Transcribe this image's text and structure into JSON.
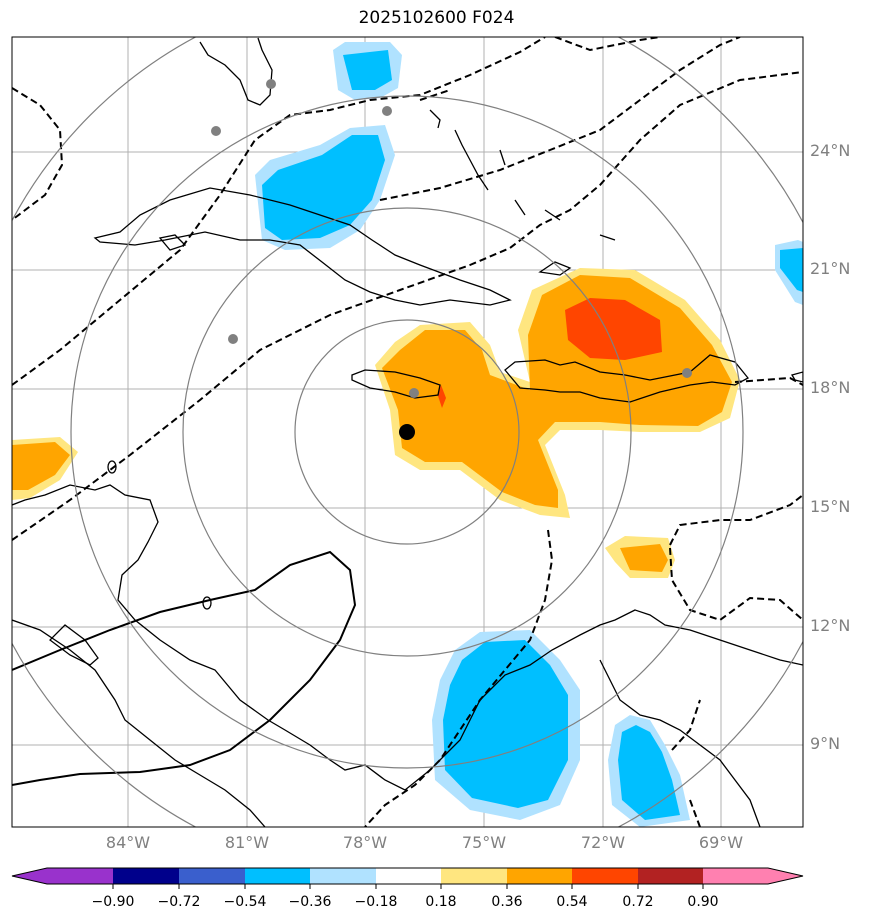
{
  "title": "2025102600 F024",
  "lat_ticks": [
    "24°N",
    "21°N",
    "18°N",
    "15°N",
    "12°N",
    "9°N"
  ],
  "lon_ticks": [
    "84°W",
    "81°W",
    "78°W",
    "75°W",
    "72°W",
    "69°W"
  ],
  "colorbar": {
    "labels": [
      "−0.90",
      "−0.72",
      "−0.54",
      "−0.36",
      "−0.18",
      "0.18",
      "0.36",
      "0.54",
      "0.72",
      "0.90"
    ],
    "colors": [
      "#9932cc",
      "#00008b",
      "#3a5fcd",
      "#00bfff",
      "#b0e2ff",
      "#ffffff",
      "#ffe680",
      "#ffa500",
      "#ff4500",
      "#b22222",
      "#ff80b0"
    ]
  },
  "fill_colors": {
    "light_orange": "#ffe680",
    "orange": "#ffa500",
    "red": "#ff4500",
    "light_blue": "#b0e2ff",
    "blue": "#00bfff"
  },
  "storm_center": {
    "lon": -77.0,
    "lat": 17.0
  },
  "station_marker_color": "#808080"
}
